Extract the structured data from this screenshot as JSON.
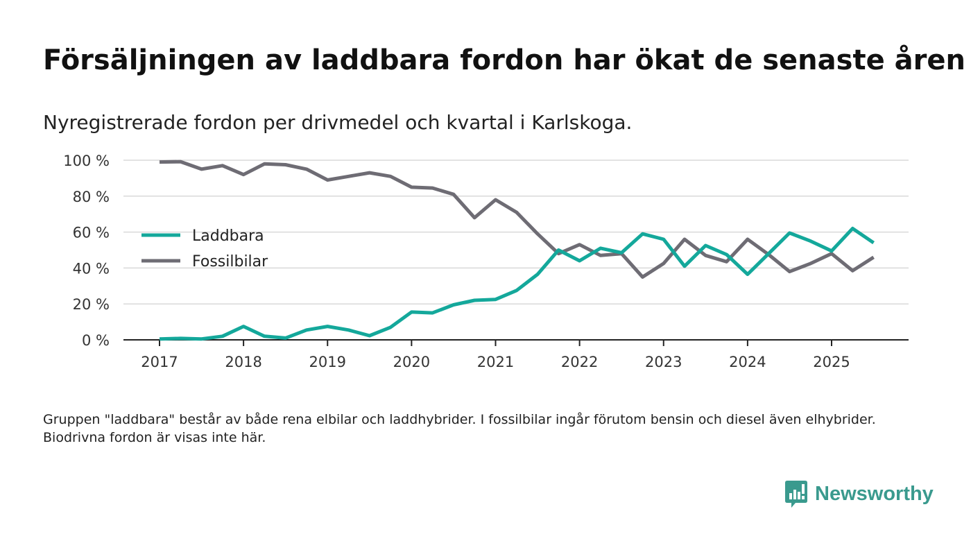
{
  "header": {
    "title": "Försäljningen av laddbara fordon har ökat de senaste åren",
    "subtitle": "Nyregistrerade fordon per drivmedel och kvartal i Karlskoga."
  },
  "footnote": "Gruppen \"laddbara\" består av både rena elbilar och laddhybrider. I fossilbilar ingår förutom bensin och diesel även elhybrider. Biodrivna fordon är visas inte här.",
  "brand": {
    "name": "Newsworthy",
    "icon": "newsworthy-logo-icon",
    "color": "#3a9a8e"
  },
  "chart_data": {
    "type": "line",
    "title": "Försäljningen av laddbara fordon har ökat de senaste åren",
    "subtitle": "Nyregistrerade fordon per drivmedel och kvartal i Karlskoga.",
    "xlabel": "",
    "ylabel": "",
    "ylim": [
      0,
      100
    ],
    "xlim": [
      2016.6,
      2026.0
    ],
    "y_ticks": [
      0,
      20,
      40,
      60,
      80,
      100
    ],
    "y_tick_labels": [
      "0 %",
      "20 %",
      "40 %",
      "60 %",
      "80 %",
      "100 %"
    ],
    "x_ticks": [
      2017,
      2018,
      2019,
      2020,
      2021,
      2022,
      2023,
      2024,
      2025
    ],
    "x_tick_labels": [
      "2017",
      "2018",
      "2019",
      "2020",
      "2021",
      "2022",
      "2023",
      "2024",
      "2025"
    ],
    "grid": true,
    "legend_position": "middle-left",
    "x": [
      2017.0,
      2017.25,
      2017.5,
      2017.75,
      2018.0,
      2018.25,
      2018.5,
      2018.75,
      2019.0,
      2019.25,
      2019.5,
      2019.75,
      2020.0,
      2020.25,
      2020.5,
      2020.75,
      2021.0,
      2021.25,
      2021.5,
      2021.75,
      2022.0,
      2022.25,
      2022.5,
      2022.75,
      2023.0,
      2023.25,
      2023.5,
      2023.75,
      2024.0,
      2024.25,
      2024.5,
      2024.75,
      2025.0,
      2025.25,
      2025.5
    ],
    "series": [
      {
        "name": "Laddbara",
        "color": "#14a89b",
        "values": [
          0.5,
          0.8,
          0.5,
          2,
          7.5,
          2,
          1,
          5.5,
          7.5,
          5.5,
          2.3,
          7,
          15.5,
          15,
          19.5,
          22,
          22.5,
          27.5,
          36.5,
          50,
          44,
          51,
          48.5,
          59,
          56,
          41,
          52.5,
          47.5,
          36.5,
          48,
          59.5,
          55,
          49.5,
          62,
          54
        ]
      },
      {
        "name": "Fossilbilar",
        "color": "#6e6c74",
        "values": [
          99,
          99.2,
          95,
          97,
          92,
          98,
          97.5,
          95,
          89,
          91,
          93,
          91,
          85,
          84.5,
          81,
          68,
          78,
          71,
          59,
          48,
          53,
          47,
          48,
          35,
          42.5,
          56,
          47,
          43.5,
          56,
          47.5,
          38,
          42.5,
          48,
          38.5,
          46
        ]
      }
    ]
  }
}
